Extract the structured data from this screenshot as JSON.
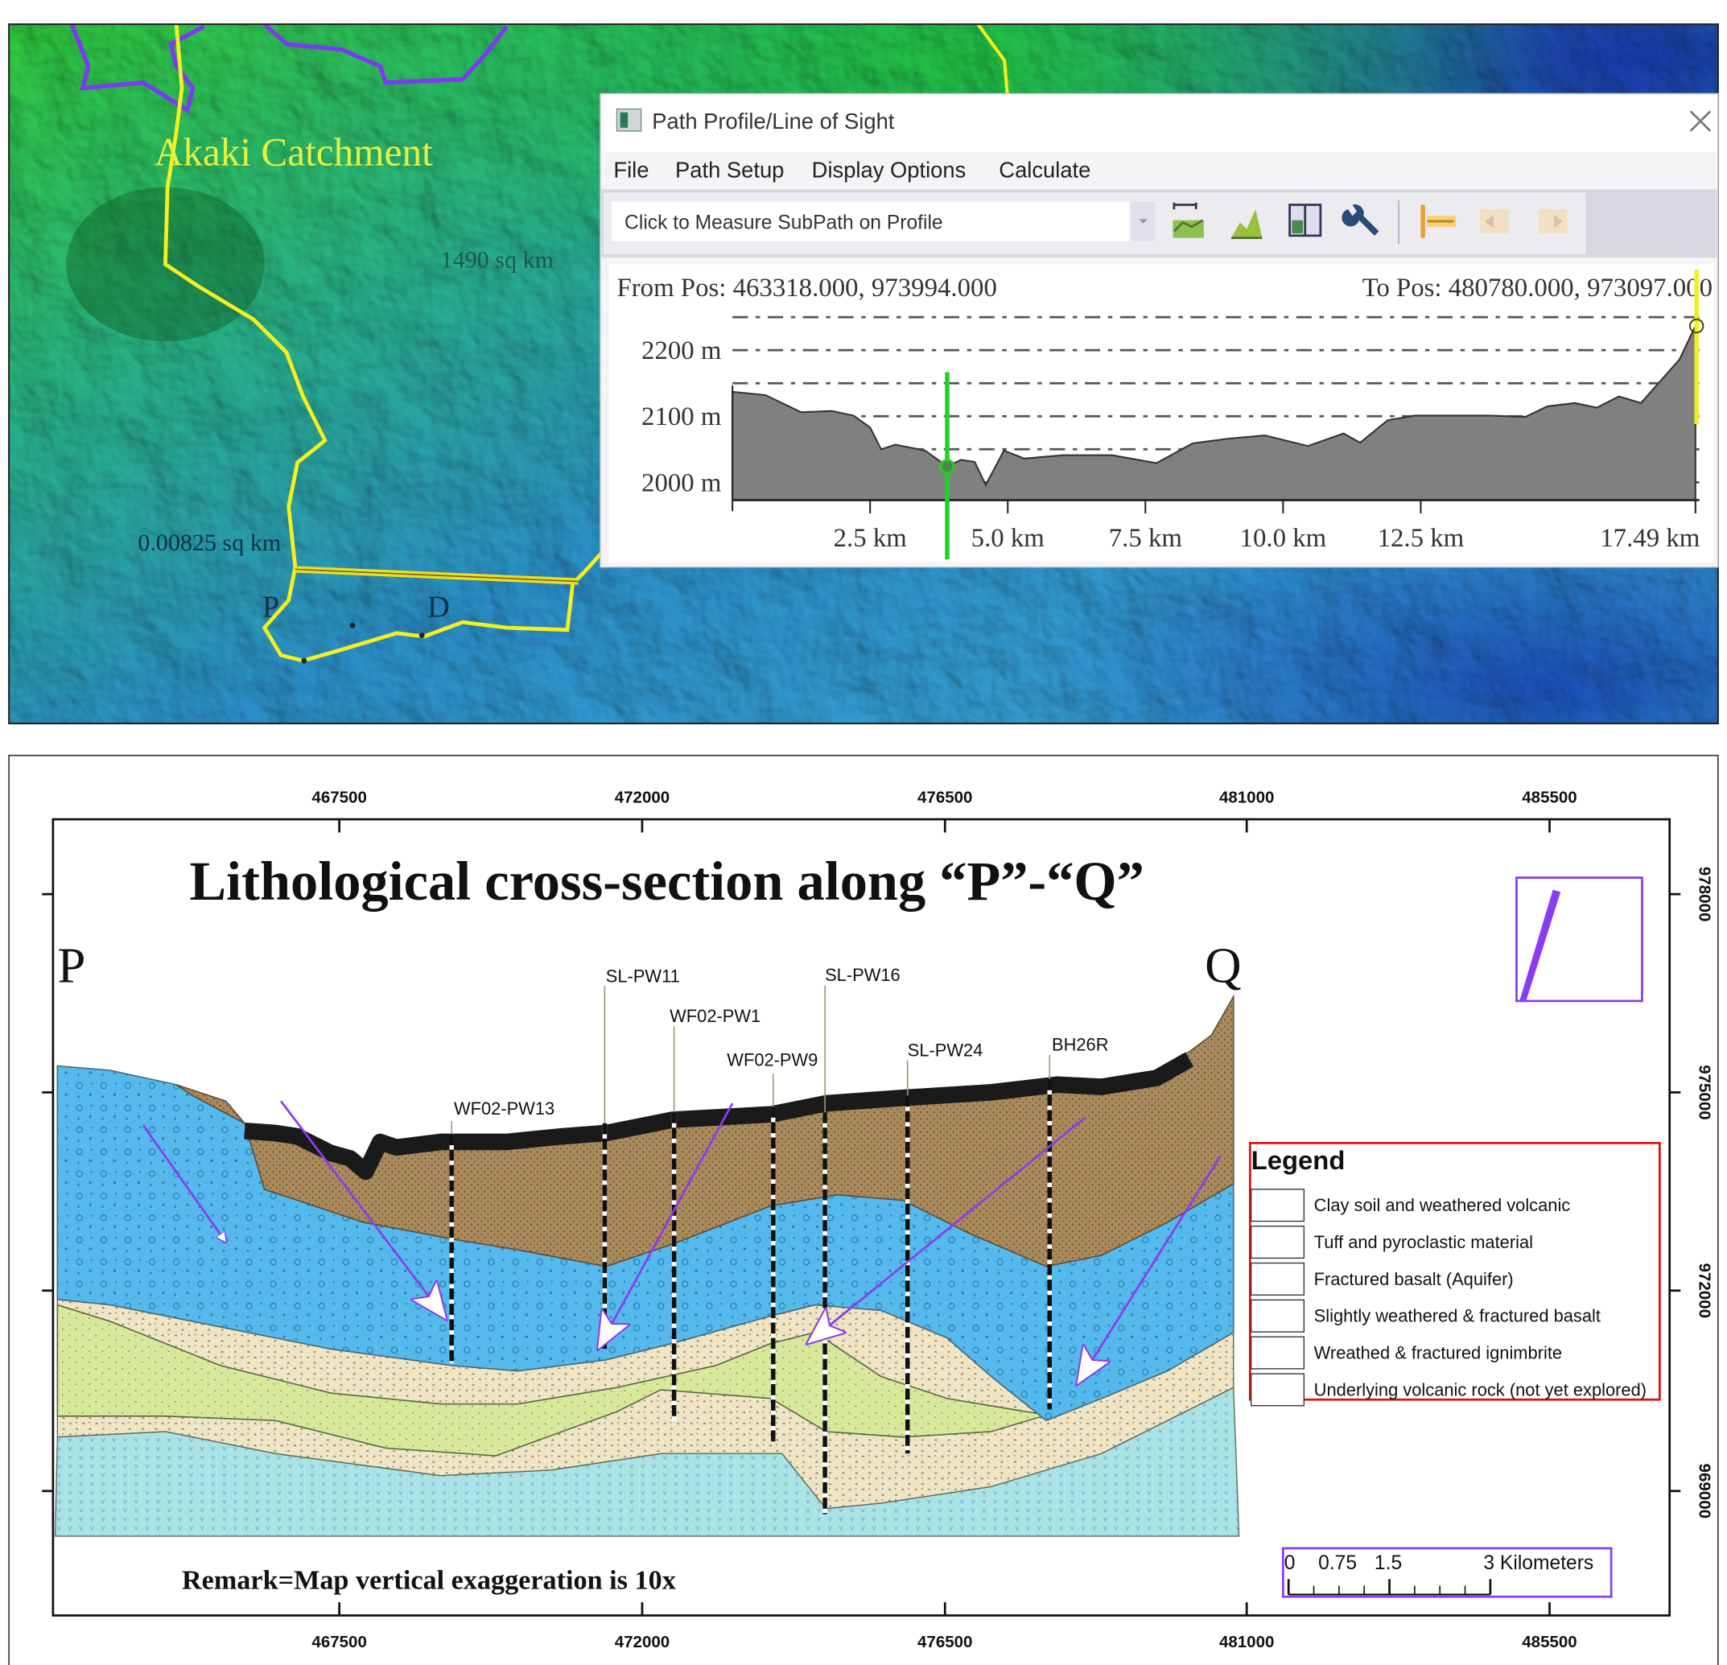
{
  "map": {
    "catchment_label": "Akaki Catchment",
    "area_label_1": "1490 sq km",
    "area_label_2": "0.00825 sq km",
    "point_p": "P",
    "point_d": "D",
    "colors": {
      "boundary": "#f5f01e",
      "sub_boundary": "#7b3cf0"
    }
  },
  "dialog": {
    "title": "Path Profile/Line of Sight",
    "close_icon": "close-icon",
    "menu": [
      "File",
      "Path Setup",
      "Display Options",
      "Calculate"
    ],
    "mode_select": "Click to Measure SubPath on Profile",
    "toolbar_icons": [
      "profile-graph-icon",
      "terrain-icon",
      "panel-icon",
      "wrench-icon",
      "path-start-icon",
      "path-back-icon",
      "path-forward-icon"
    ],
    "from_pos": "From Pos: 463318.000, 973994.000",
    "to_pos": "To Pos: 480780.000, 973097.000"
  },
  "chart_data": {
    "type": "area",
    "title": "",
    "xlabel": "",
    "ylabel": "",
    "x_unit": "km",
    "y_unit": "m",
    "xlim": [
      0,
      17.49
    ],
    "ylim": [
      1973,
      2250
    ],
    "grid": true,
    "y_ticks": [
      {
        "value": 2000,
        "label": "2000 m"
      },
      {
        "value": 2100,
        "label": "2100 m"
      },
      {
        "value": 2200,
        "label": "2200 m"
      }
    ],
    "x_ticks": [
      {
        "value": 2.5,
        "label": "2.5 km"
      },
      {
        "value": 5.0,
        "label": "5.0 km"
      },
      {
        "value": 7.5,
        "label": "7.5 km"
      },
      {
        "value": 10.0,
        "label": "10.0 km"
      },
      {
        "value": 12.5,
        "label": "12.5 km"
      },
      {
        "value": 17.49,
        "label": "17.49 km"
      }
    ],
    "x": [
      0,
      0.6,
      1.25,
      1.8,
      2.2,
      2.5,
      2.7,
      2.96,
      3.5,
      3.9,
      4.15,
      4.4,
      4.6,
      4.93,
      5.3,
      6.0,
      6.9,
      7.7,
      8.36,
      9.0,
      9.67,
      10.45,
      11.1,
      11.4,
      11.9,
      12.4,
      13.2,
      13.75,
      14.4,
      14.8,
      15.3,
      15.7,
      16.1,
      16.5,
      17.2,
      17.49
    ],
    "elevation": [
      2137,
      2132,
      2106,
      2108,
      2101,
      2083,
      2050,
      2057,
      2048,
      2024,
      2034,
      2031,
      1996,
      2048,
      2036,
      2041,
      2041,
      2029,
      2059,
      2066,
      2071,
      2055,
      2074,
      2060,
      2094,
      2101,
      2101,
      2101,
      2099,
      2115,
      2120,
      2113,
      2130,
      2120,
      2186,
      2237
    ],
    "cursor_km": 3.9,
    "colors": {
      "fill": "#808080",
      "cursor": "#22d022",
      "end_marker": "#f0f020"
    }
  },
  "section": {
    "title": "Lithological cross-section along “P”-“Q”",
    "start_label": "P",
    "end_label": "Q",
    "x_ticks": [
      "467500",
      "472000",
      "476500",
      "481000",
      "485500"
    ],
    "y_ticks": [
      "978000",
      "975000",
      "972000",
      "969000"
    ],
    "wells": [
      "WF02-PW13",
      "SL-PW11",
      "WF02-PW1",
      "WF02-PW9",
      "SL-PW16",
      "SL-PW24",
      "BH26R"
    ],
    "remark": "Remark=Map vertical exaggeration is 10x",
    "legend": {
      "title": "Legend",
      "items": [
        "Clay soil and weathered volcanic",
        "Tuff and pyroclastic material",
        "Fractured basalt (Aquifer)",
        "Slightly weathered & fractured basalt",
        "Wreathed & fractured ignimbrite",
        "Underlying volcanic rock (not yet explored)"
      ]
    },
    "scale_bar": {
      "labels": [
        "0",
        "0.75",
        "1.5",
        "3 Kilometers"
      ]
    },
    "north_arrow_icon": "north-arrow-icon",
    "colors": {
      "clay": "#a88a5c",
      "tuff": "#1a1a1a",
      "basalt_aquifer": "#55b9ec",
      "slightly_weathered": "#efe5c4",
      "ignimbrite": "#d8e89a",
      "underlying": "#a9e3e4",
      "flow_arrow": "#8a3cf0",
      "legend_border": "#e01010"
    }
  }
}
